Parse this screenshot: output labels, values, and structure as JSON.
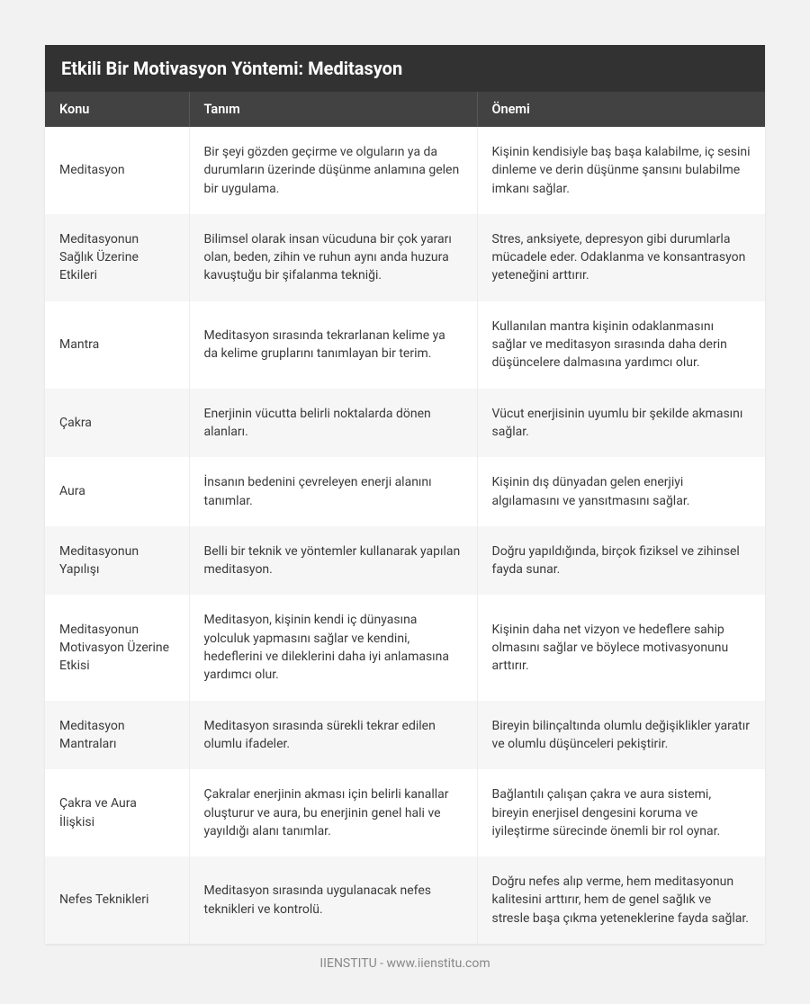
{
  "title": "Etkili Bir Motivasyon Yöntemi: Meditasyon",
  "columns": [
    "Konu",
    "Tanım",
    "Önemi"
  ],
  "rows": [
    {
      "konu": "Meditasyon",
      "tanim": "Bir şeyi gözden geçirme ve olguların ya da durumların üzerinde düşünme anlamına gelen bir uygulama.",
      "onemi": "Kişinin kendisiyle baş başa kalabilme, iç sesini dinleme ve derin düşünme şansını bulabilme imkanı sağlar."
    },
    {
      "konu": "Meditasyonun Sağlık Üzerine Etkileri",
      "tanim": "Bilimsel olarak insan vücuduna bir çok yararı olan, beden, zihin ve ruhun aynı anda huzura kavuştuğu bir şifalanma tekniği.",
      "onemi": "Stres, anksiyete, depresyon gibi durumlarla mücadele eder. Odaklanma ve konsantrasyon yeteneğini arttırır."
    },
    {
      "konu": "Mantra",
      "tanim": "Meditasyon sırasında tekrarlanan kelime ya da kelime gruplarını tanımlayan bir terim.",
      "onemi": "Kullanılan mantra kişinin odaklanmasını sağlar ve meditasyon sırasında daha derin düşüncelere dalmasına yardımcı olur."
    },
    {
      "konu": "Çakra",
      "tanim": "Enerjinin vücutta belirli noktalarda dönen alanları.",
      "onemi": "Vücut enerjisinin uyumlu bir şekilde akmasını sağlar."
    },
    {
      "konu": "Aura",
      "tanim": "İnsanın bedenini çevreleyen enerji alanını tanımlar.",
      "onemi": "Kişinin dış dünyadan gelen enerjiyi algılamasını ve yansıtmasını sağlar."
    },
    {
      "konu": "Meditasyonun Yapılışı",
      "tanim": "Belli bir teknik ve yöntemler kullanarak yapılan meditasyon.",
      "onemi": "Doğru yapıldığında, birçok fiziksel ve zihinsel fayda sunar."
    },
    {
      "konu": "Meditasyonun Motivasyon Üzerine Etkisi",
      "tanim": "Meditasyon, kişinin kendi iç dünyasına yolculuk yapmasını sağlar ve kendini, hedeflerini ve dileklerini daha iyi anlamasına yardımcı olur.",
      "onemi": "Kişinin daha net vizyon ve hedeflere sahip olmasını sağlar ve böylece motivasyonunu arttırır."
    },
    {
      "konu": "Meditasyon Mantraları",
      "tanim": "Meditasyon sırasında sürekli tekrar edilen olumlu ifadeler.",
      "onemi": "Bireyin bilinçaltında olumlu değişiklikler yaratır ve olumlu düşünceleri pekiştirir."
    },
    {
      "konu": "Çakra ve Aura İlişkisi",
      "tanim": "Çakralar enerjinin akması için belirli kanallar oluşturur ve aura, bu enerjinin genel hali ve yayıldığı alanı tanımlar.",
      "onemi": "Bağlantılı çalışan çakra ve aura sistemi, bireyin enerjisel dengesini koruma ve iyileştirme sürecinde önemli bir rol oynar."
    },
    {
      "konu": "Nefes Teknikleri",
      "tanim": "Meditasyon sırasında uygulanacak nefes teknikleri ve kontrolü.",
      "onemi": "Doğru nefes alıp verme, hem meditasyonun kalitesini arttırır, hem de genel sağlık ve stresle başa çıkma yeteneklerine fayda sağlar."
    }
  ],
  "footer": "IIENSTITU - www.iienstitu.com",
  "styles": {
    "page_bg": "#f2f2f2",
    "card_bg": "#ffffff",
    "title_bg": "#323232",
    "title_color": "#ffffff",
    "title_fontsize": 20,
    "header_bg": "#424242",
    "header_color": "#ffffff",
    "header_fontsize": 14.5,
    "row_odd_bg": "#ffffff",
    "row_even_bg": "#f6f6f6",
    "cell_fontsize": 14,
    "cell_color": "#3a3a3a",
    "border_color": "#ececec",
    "footer_color": "#888",
    "footer_fontsize": 14,
    "column_widths": [
      "20%",
      "40%",
      "40%"
    ]
  }
}
